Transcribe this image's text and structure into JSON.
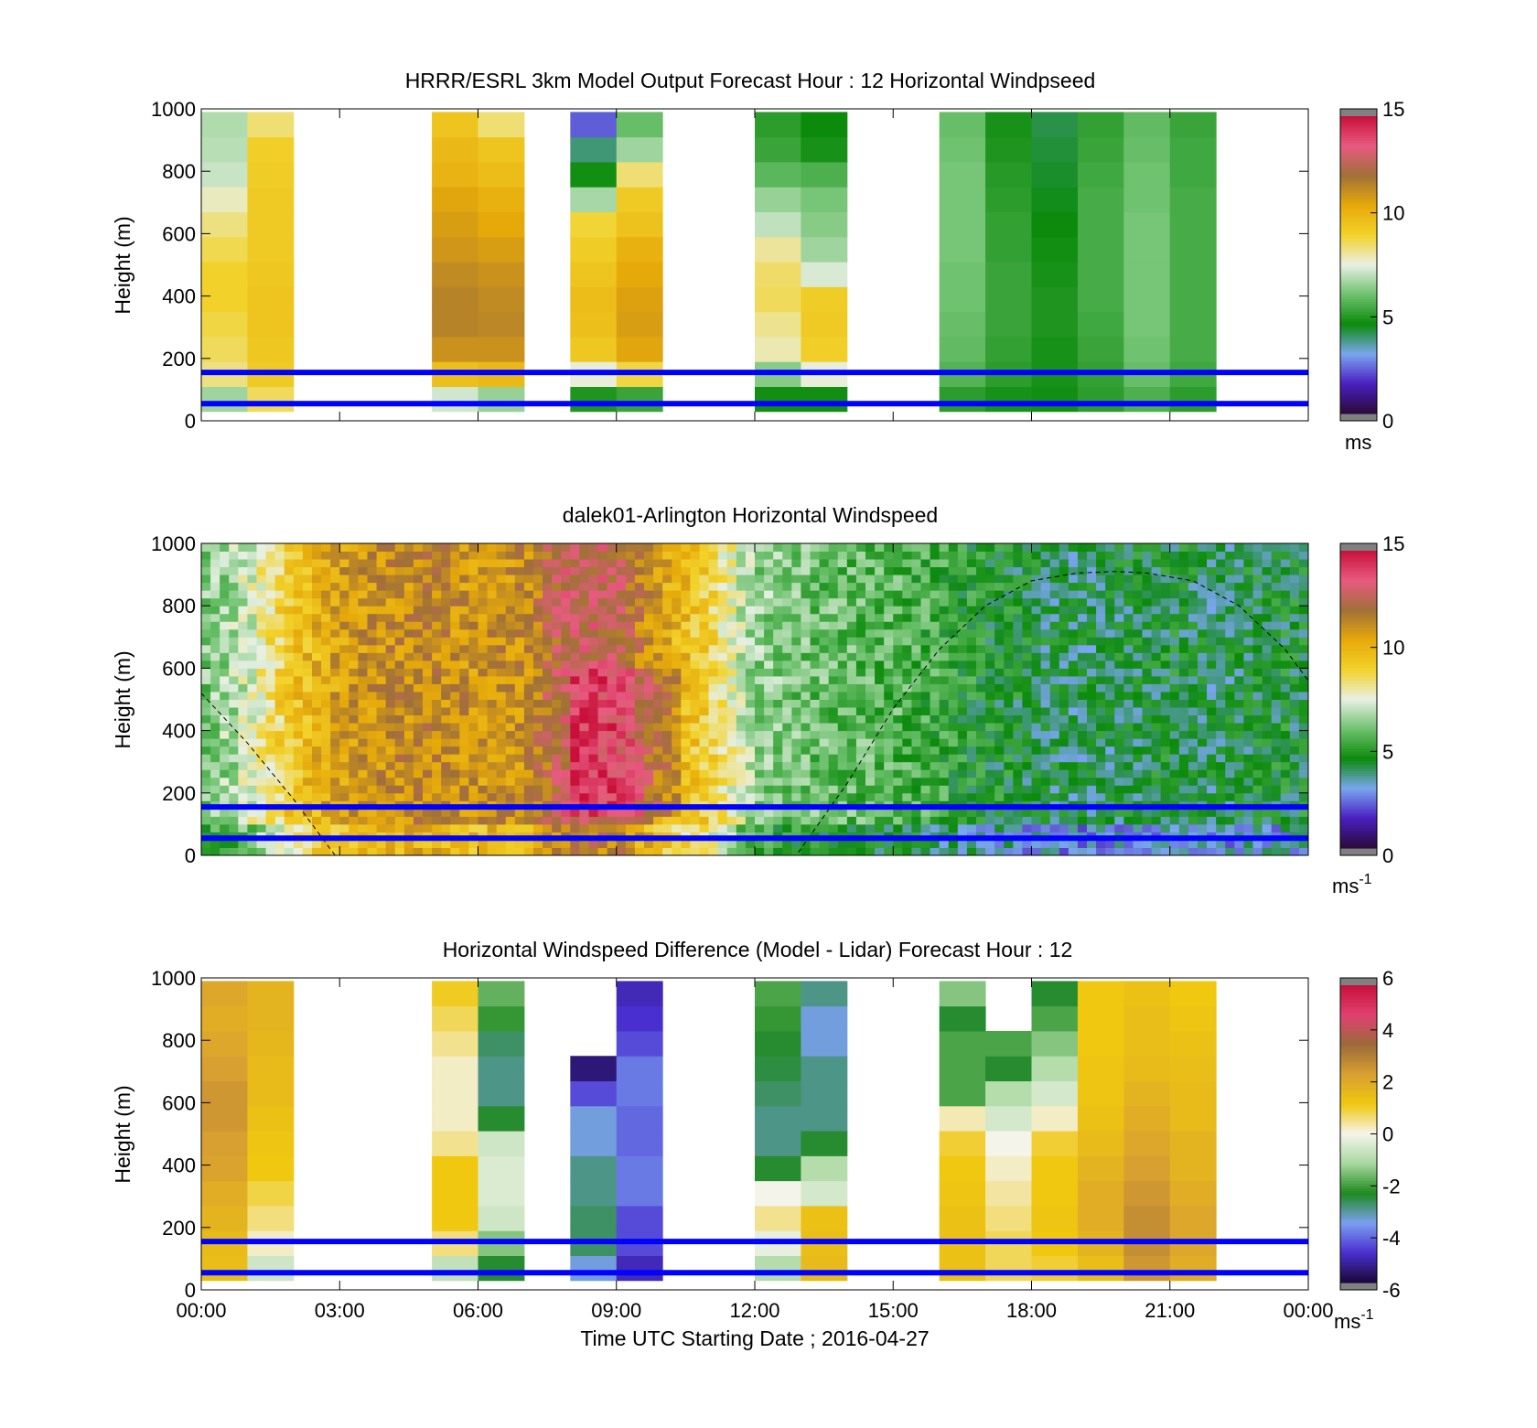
{
  "colors": {
    "overlay_line": "#0000ff",
    "speed_colormap": [
      "#2a0a3a",
      "#4a1fc0",
      "#7aa6f0",
      "#0b8a0b",
      "#6fc26f",
      "#e8f0e4",
      "#f2d22a",
      "#e6a90a",
      "#a07038",
      "#e85a80",
      "#c8103a"
    ],
    "diff_colormap": [
      "#1a0838",
      "#4a2fd0",
      "#7aa0f0",
      "#1e8a1e",
      "#a8d8a0",
      "#f4f4ea",
      "#f0c810",
      "#d8a030",
      "#9c6a3a",
      "#e04070",
      "#c8103a"
    ]
  },
  "x_axis": {
    "ticks": [
      "00:00",
      "03:00",
      "06:00",
      "09:00",
      "12:00",
      "15:00",
      "18:00",
      "21:00",
      "00:00"
    ],
    "label": "Time UTC  Starting Date ; 2016-04-27"
  },
  "y_axis": {
    "label": "Height (m)",
    "ticks": [
      "0",
      "200",
      "400",
      "600",
      "800",
      "1000"
    ]
  },
  "panels": [
    {
      "title": "HRRR/ESRL 3km Model Output   Forecast Hour : 12 Horizontal Windpseed",
      "colorbar": {
        "ticks": [
          "0",
          "5",
          "10",
          "15"
        ],
        "unit": "ms"
      }
    },
    {
      "title": "dalek01-Arlington  Horizontal Windspeed",
      "colorbar": {
        "ticks": [
          "0",
          "5",
          "10",
          "15"
        ],
        "unit": "ms",
        "unit_sup": "-1"
      }
    },
    {
      "title": "Horizontal Windspeed Difference (Model - Lidar) Forecast Hour : 12",
      "colorbar": {
        "ticks": [
          "-6",
          "-4",
          "-2",
          "0",
          "2",
          "4",
          "6"
        ],
        "unit": "ms",
        "unit_sup": "-1"
      }
    }
  ],
  "chart_data": [
    {
      "type": "heatmap",
      "title": "HRRR/ESRL 3km Model Output   Forecast Hour : 12 Horizontal Windpseed",
      "xlabel": "",
      "ylabel": "Height (m)",
      "ylim": [
        0,
        1000
      ],
      "xlim_hours": [
        0,
        24
      ],
      "clim": [
        0,
        15
      ],
      "horizontal_lines_m": [
        155,
        55
      ],
      "columns": [
        {
          "start_hour": 0,
          "end_hour": 1,
          "values_low_to_high": [
            6.6,
            8.3,
            8.6,
            8.8,
            9.0,
            9.0,
            8.7,
            8.3,
            7.8,
            7.1,
            6.9,
            6.8
          ]
        },
        {
          "start_hour": 1,
          "end_hour": 2,
          "values_low_to_high": [
            8.6,
            9.3,
            9.4,
            9.5,
            9.5,
            9.4,
            9.3,
            9.3,
            9.3,
            9.2,
            9.1,
            8.4
          ]
        },
        {
          "start_hour": 5,
          "end_hour": 6,
          "values_low_to_high": [
            7.2,
            9.7,
            11.1,
            11.5,
            11.5,
            11.3,
            11.0,
            10.8,
            10.6,
            10.1,
            9.9,
            9.5
          ]
        },
        {
          "start_hour": 6,
          "end_hour": 7,
          "values_low_to_high": [
            6.5,
            9.9,
            11.1,
            11.4,
            11.3,
            11.1,
            10.8,
            10.5,
            10.2,
            9.8,
            9.5,
            8.4
          ]
        },
        {
          "start_hour": 8,
          "end_hour": 9,
          "values_low_to_high": [
            4.8,
            7.6,
            9.4,
            9.7,
            9.8,
            9.5,
            9.2,
            8.9,
            6.7,
            4.6,
            3.8,
            2.2
          ]
        },
        {
          "start_hour": 9,
          "end_hour": 10,
          "values_low_to_high": [
            5.2,
            8.8,
            10.6,
            10.8,
            10.7,
            10.5,
            10.2,
            9.6,
            9.3,
            8.4,
            6.6,
            5.9
          ]
        },
        {
          "start_hour": 12,
          "end_hour": 13,
          "values_low_to_high": [
            4.6,
            6.3,
            7.9,
            8.2,
            8.6,
            8.5,
            8.1,
            7.0,
            6.5,
            5.7,
            5.2,
            5.0
          ]
        },
        {
          "start_hour": 13,
          "end_hour": 14,
          "values_low_to_high": [
            4.6,
            7.6,
            9.1,
            9.3,
            9.2,
            7.3,
            6.6,
            6.3,
            6.1,
            5.5,
            4.7,
            4.5
          ]
        },
        {
          "start_hour": 16,
          "end_hour": 17,
          "values_low_to_high": [
            5.0,
            5.6,
            5.8,
            5.9,
            6.0,
            6.0,
            6.1,
            6.1,
            6.1,
            6.1,
            6.0,
            5.9
          ]
        },
        {
          "start_hour": 17,
          "end_hour": 18,
          "values_low_to_high": [
            4.7,
            5.0,
            5.1,
            5.2,
            5.2,
            5.2,
            5.1,
            5.1,
            5.0,
            4.9,
            4.8,
            4.7
          ]
        },
        {
          "start_hour": 18,
          "end_hour": 19,
          "values_low_to_high": [
            4.6,
            4.7,
            4.7,
            4.8,
            4.8,
            4.7,
            4.6,
            4.5,
            4.4,
            4.3,
            4.2,
            4.1
          ]
        },
        {
          "start_hour": 19,
          "end_hour": 20,
          "values_low_to_high": [
            5.0,
            5.1,
            5.2,
            5.3,
            5.4,
            5.4,
            5.4,
            5.4,
            5.4,
            5.3,
            5.2,
            5.1
          ]
        },
        {
          "start_hour": 20,
          "end_hour": 21,
          "values_low_to_high": [
            5.5,
            5.9,
            6.0,
            6.1,
            6.1,
            6.1,
            6.1,
            6.1,
            6.0,
            6.0,
            5.9,
            5.8
          ]
        },
        {
          "start_hour": 21,
          "end_hour": 22,
          "values_low_to_high": [
            5.0,
            5.3,
            5.4,
            5.4,
            5.4,
            5.4,
            5.4,
            5.4,
            5.4,
            5.3,
            5.3,
            5.2
          ]
        }
      ]
    },
    {
      "type": "heatmap",
      "title": "dalek01-Arlington  Horizontal Windspeed",
      "xlabel": "",
      "ylabel": "Height (m)",
      "ylim": [
        0,
        1000
      ],
      "xlim_hours": [
        0,
        24
      ],
      "clim": [
        0,
        15
      ],
      "horizontal_lines_m": [
        155,
        55
      ],
      "series": [
        {
          "name": "hour",
          "values": [
            0.5,
            1.5,
            2.5,
            3.5,
            4.5,
            5.5,
            6.5,
            7.5,
            8.5,
            9.5,
            10.5,
            11.5,
            12.5,
            13.5,
            14.5,
            15.5,
            16.5,
            17.5,
            18.5,
            19.5,
            20.5,
            21.5,
            22.5,
            23.5
          ]
        },
        {
          "name": "approx_mean_speed_0_1000m",
          "values": [
            6.0,
            7.2,
            9.5,
            10.8,
            11.2,
            11.4,
            11.0,
            11.2,
            13.0,
            12.8,
            10.5,
            9.0,
            6.5,
            6.0,
            5.8,
            5.6,
            5.2,
            4.6,
            4.3,
            4.0,
            4.2,
            4.4,
            4.0,
            4.4
          ]
        }
      ],
      "dashed_curve": {
        "x_hours": [
          0,
          1,
          2,
          2.9,
          3.5,
          12.9,
          14,
          15,
          16,
          17,
          18,
          19,
          19.8,
          20.5,
          21.5,
          22.5,
          23.5,
          24
        ],
        "y_m": [
          520,
          360,
          180,
          0,
          0,
          0,
          230,
          470,
          660,
          800,
          880,
          905,
          910,
          905,
          880,
          800,
          660,
          560
        ]
      }
    },
    {
      "type": "heatmap",
      "title": "Horizontal Windspeed Difference (Model - Lidar) Forecast Hour : 12",
      "xlabel": "Time UTC  Starting Date ; 2016-04-27",
      "ylabel": "Height (m)",
      "ylim": [
        0,
        1000
      ],
      "xlim_hours": [
        0,
        24
      ],
      "clim": [
        -6,
        6
      ],
      "horizontal_lines_m": [
        155,
        55
      ],
      "columns": [
        {
          "start_hour": 0,
          "end_hour": 1,
          "values_low_to_high": [
            1.5,
            1.6,
            1.8,
            2.0,
            2.3,
            2.4,
            2.6,
            2.6,
            2.4,
            2.2,
            2.0,
            2.2
          ]
        },
        {
          "start_hour": 1,
          "end_hour": 2,
          "values_low_to_high": [
            -0.6,
            0.2,
            0.6,
            0.9,
            1.2,
            1.3,
            1.4,
            1.6,
            1.6,
            1.7,
            1.8,
            1.8
          ]
        },
        {
          "start_hour": 5,
          "end_hour": 6,
          "values_low_to_high": [
            -0.8,
            0.6,
            1.2,
            1.2,
            1.2,
            0.5,
            0.2,
            0.2,
            0.2,
            0.5,
            0.8,
            1.1
          ]
        },
        {
          "start_hour": 6,
          "end_hour": 7,
          "values_low_to_high": [
            -2.5,
            -1.5,
            -0.6,
            -0.4,
            -0.4,
            -0.6,
            -2.5,
            -3.0,
            -3.0,
            -2.8,
            -2.2,
            -1.8
          ]
        },
        {
          "start_hour": 8,
          "end_hour": 9,
          "values_low_to_high": [
            -3.5,
            -2.8,
            -2.8,
            -3.0,
            -3.0,
            -3.5,
            -3.5,
            -4.5,
            -5.5,
            null,
            null,
            null
          ]
        },
        {
          "start_hour": 9,
          "end_hour": 10,
          "values_low_to_high": [
            -5.0,
            -4.5,
            -4.5,
            -4.0,
            -4.0,
            -4.2,
            -4.2,
            -4.0,
            -4.0,
            -4.5,
            -4.8,
            -5.0
          ]
        },
        {
          "start_hour": 12,
          "end_hour": 13,
          "values_low_to_high": [
            -1.0,
            -0.2,
            0.5,
            0.0,
            -2.5,
            -3.0,
            -3.0,
            -2.8,
            -2.6,
            -2.5,
            -2.2,
            -2.0
          ]
        },
        {
          "start_hour": 13,
          "end_hour": 14,
          "values_low_to_high": [
            1.6,
            1.5,
            1.4,
            -0.5,
            -1.0,
            -2.5,
            -3.0,
            -3.0,
            -3.0,
            -3.5,
            -3.5,
            -3.0
          ]
        },
        {
          "start_hour": 16,
          "end_hour": 17,
          "values_low_to_high": [
            1.4,
            1.4,
            1.4,
            1.3,
            1.2,
            1.0,
            0.3,
            -2.0,
            -2.0,
            -2.0,
            -2.5,
            -1.5
          ]
        },
        {
          "start_hour": 17,
          "end_hour": 18,
          "values_low_to_high": [
            0.8,
            0.8,
            0.6,
            0.4,
            0.2,
            0.0,
            -0.5,
            -1.0,
            -2.5,
            -2.0,
            null,
            null
          ]
        },
        {
          "start_hour": 18,
          "end_hour": 19,
          "values_low_to_high": [
            1.0,
            1.2,
            1.3,
            1.2,
            1.2,
            1.0,
            0.2,
            -0.5,
            -1.0,
            -1.5,
            -2.0,
            -2.5
          ]
        },
        {
          "start_hour": 19,
          "end_hour": 20,
          "values_low_to_high": [
            1.5,
            1.8,
            2.0,
            2.0,
            1.8,
            1.6,
            1.4,
            1.3,
            1.3,
            1.2,
            1.2,
            1.2
          ]
        },
        {
          "start_hour": 20,
          "end_hour": 21,
          "values_low_to_high": [
            2.6,
            2.8,
            2.8,
            2.6,
            2.4,
            2.2,
            2.0,
            1.8,
            1.6,
            1.5,
            1.5,
            1.4
          ]
        },
        {
          "start_hour": 21,
          "end_hour": 22,
          "values_low_to_high": [
            2.0,
            2.2,
            2.2,
            2.0,
            1.8,
            1.8,
            1.6,
            1.6,
            1.5,
            1.4,
            1.3,
            1.2
          ]
        }
      ]
    }
  ]
}
